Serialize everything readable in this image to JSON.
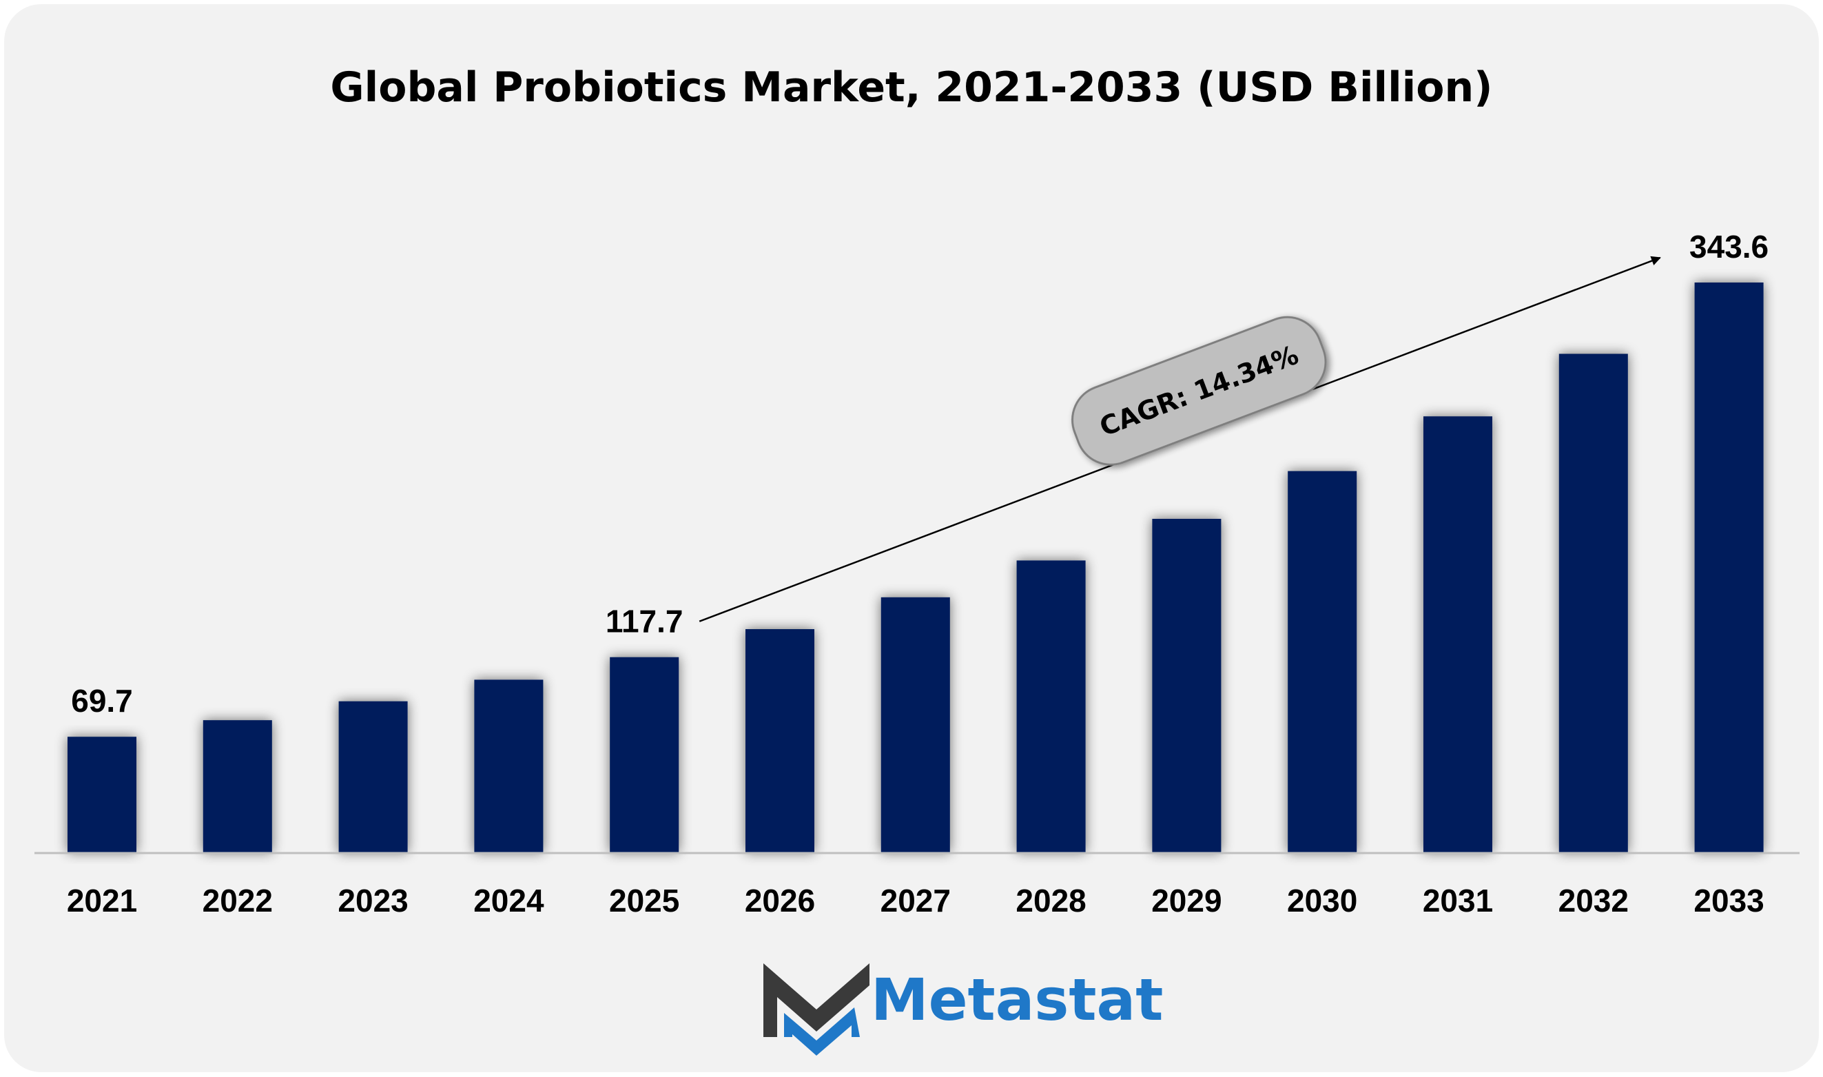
{
  "chart_data": {
    "type": "bar",
    "title": "Global Probiotics Market, 2021-2033 (USD Billion)",
    "categories": [
      "2021",
      "2022",
      "2023",
      "2024",
      "2025",
      "2026",
      "2027",
      "2028",
      "2029",
      "2030",
      "2031",
      "2032",
      "2033"
    ],
    "values": [
      69.7,
      79.7,
      91.1,
      104.1,
      117.7,
      134.6,
      153.8,
      176.0,
      201.1,
      229.9,
      262.9,
      300.6,
      343.6
    ],
    "data_labels": [
      {
        "category": "2021",
        "text": "69.7"
      },
      {
        "category": "2025",
        "text": "117.7"
      },
      {
        "category": "2033",
        "text": "343.6"
      }
    ],
    "annotation": {
      "text": "CAGR: 14.34%",
      "from": "2025",
      "to": "2033"
    },
    "ylim": [
      0,
      350
    ],
    "grid": false,
    "legend": "none",
    "colors": {
      "bar": "#001f5c",
      "axis": "#bfbfbf",
      "background": "#f2f2f2",
      "pill": "#bfbfbf"
    }
  },
  "branding": {
    "logo_text": "Metastat",
    "logo_colors": {
      "dark": "#3a3a3a",
      "blue": "#1f78c8"
    },
    "logo_icon": "metastat-m-icon"
  }
}
